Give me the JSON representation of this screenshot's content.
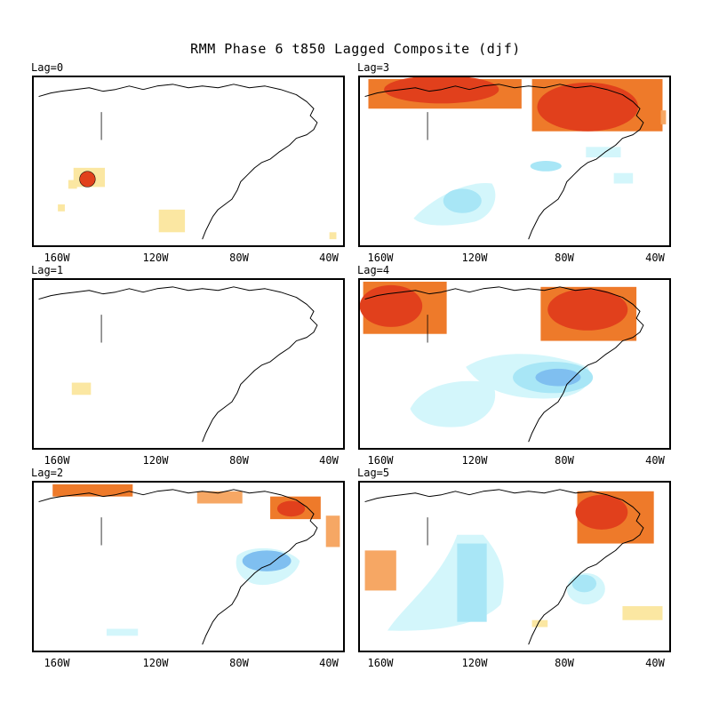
{
  "figure": {
    "title": "RMM Phase 6 t850 Lagged Composite (djf)"
  },
  "lon_ticks": [
    "160W",
    "120W",
    "80W",
    "40W"
  ],
  "colors": {
    "warm_1": "#fbe7a2",
    "warm_2": "#f6a764",
    "warm_3": "#ee7a2a",
    "warm_4": "#e1401c",
    "cool_1": "#d3f6fb",
    "cool_2": "#a8e6f6",
    "cool_3": "#7fbff0",
    "coast": "#000000"
  },
  "panels": [
    {
      "id": "lag0",
      "label": "Lag=0",
      "anomalies": [
        "subtle warm patch west of Baja",
        "warm patch Mexico",
        "small warm cell central Pacific"
      ]
    },
    {
      "id": "lag3",
      "label": "Lag=3",
      "anomalies": [
        "strong warm Alaska-Yukon",
        "strong warm northeast Canada",
        "cool eastern Pacific",
        "cool Great Lakes"
      ]
    },
    {
      "id": "lag1",
      "label": "Lag=1",
      "anomalies": [
        "small warm patch central Pacific"
      ]
    },
    {
      "id": "lag4",
      "label": "Lag=4",
      "anomalies": [
        "strong warm Bering",
        "strong warm Hudson Bay-Labrador",
        "cool southeast US",
        "cool eastern Pacific"
      ]
    },
    {
      "id": "lag2",
      "label": "Lag=2",
      "anomalies": [
        "warm north Alaska",
        "warm northeast Canada",
        "cool New England"
      ]
    },
    {
      "id": "lag5",
      "label": "Lag=5",
      "anomalies": [
        "warm Labrador",
        "cool western US and Pacific",
        "cool Atlantic coast",
        "warm small patches"
      ]
    }
  ]
}
